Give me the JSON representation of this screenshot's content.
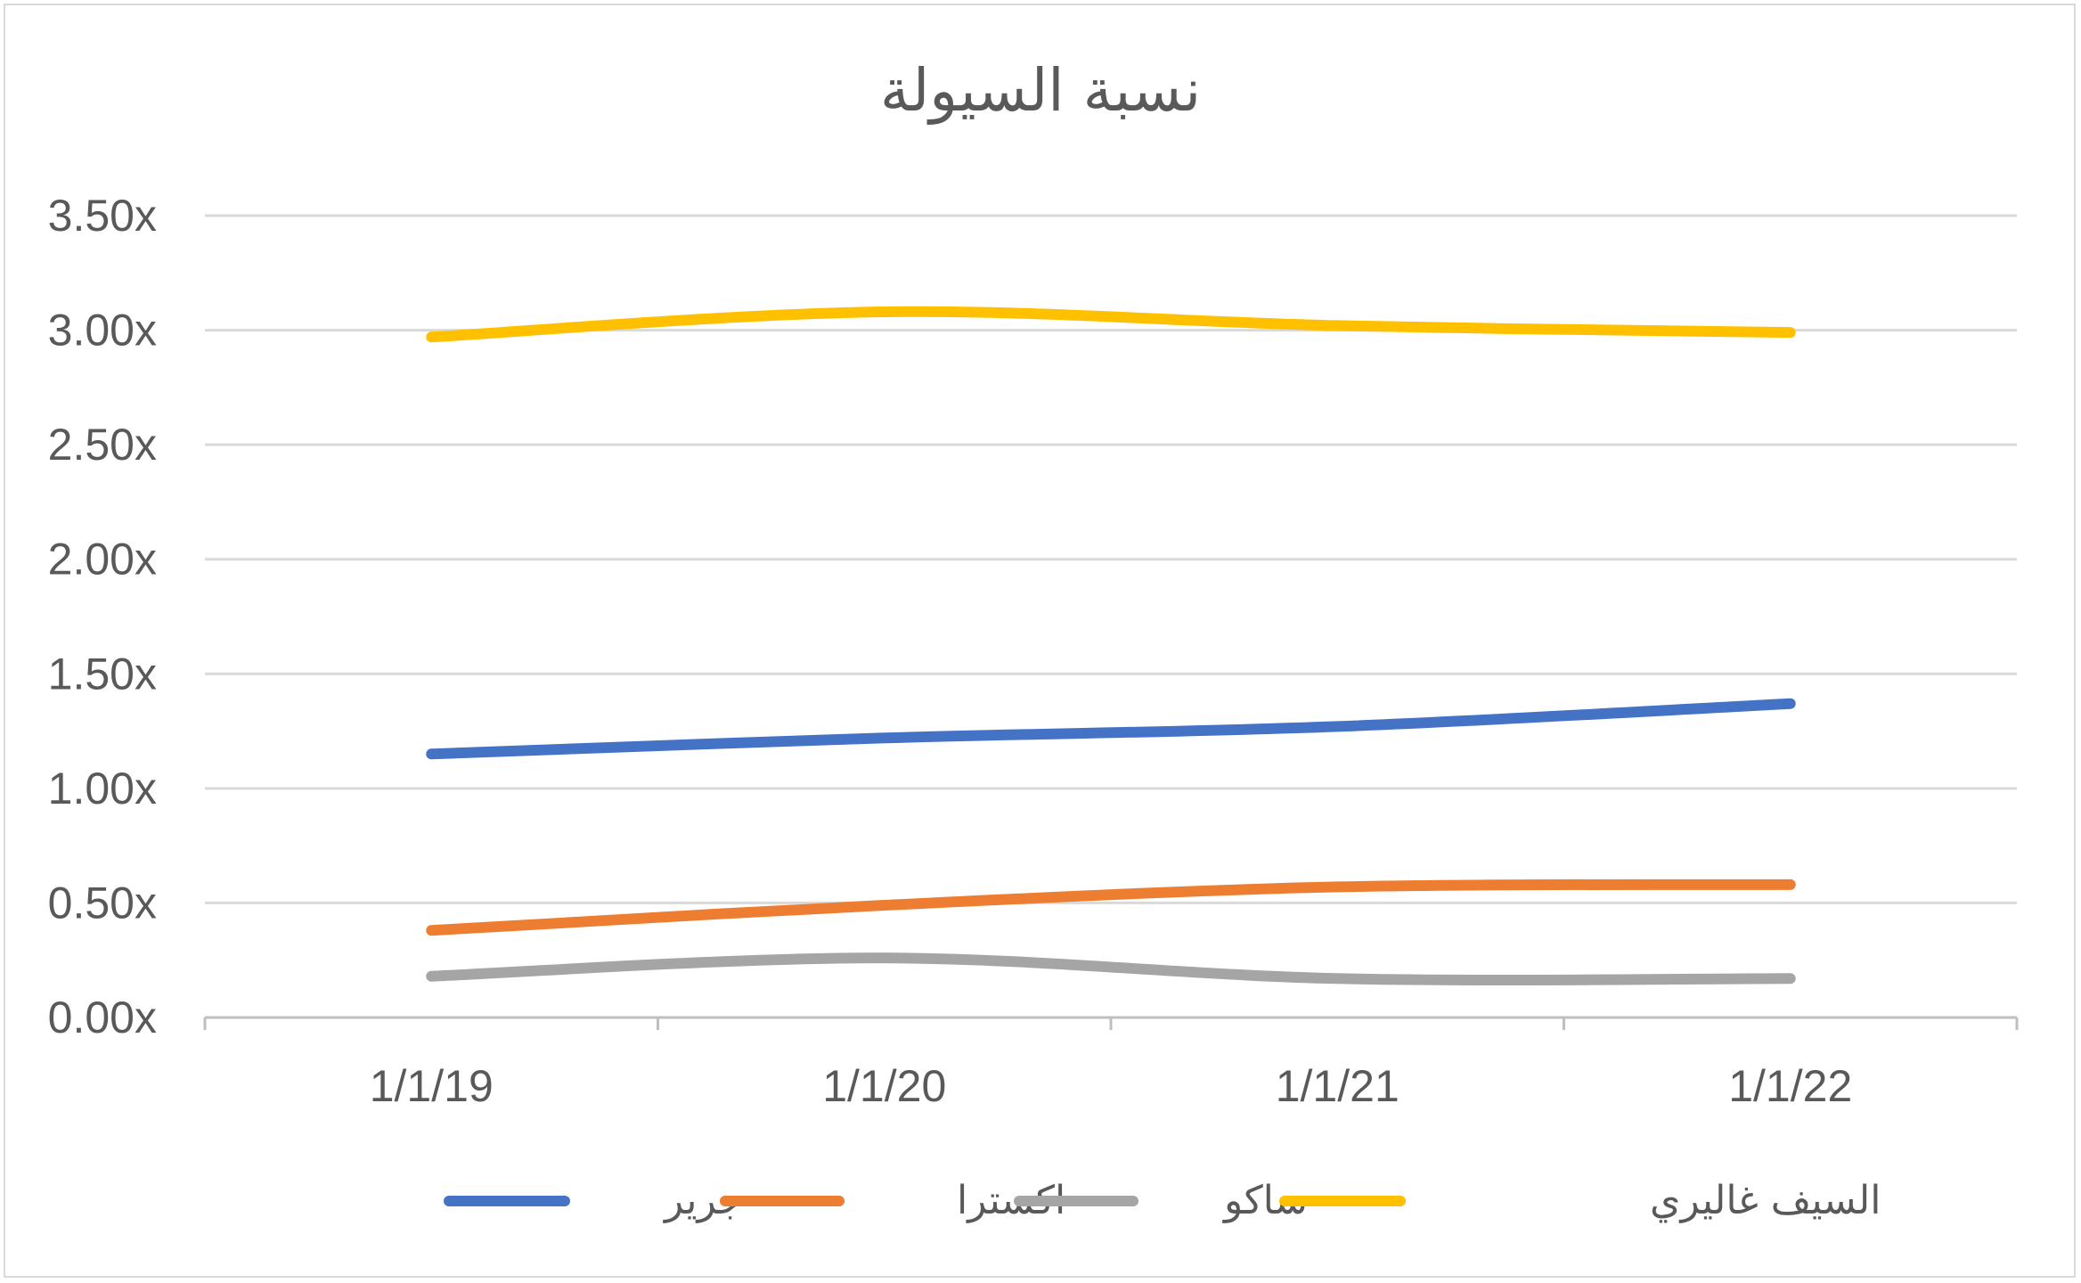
{
  "chart_data": {
    "type": "line",
    "title": "نسبة السيولة",
    "x": [
      "1/1/19",
      "1/1/20",
      "1/1/21",
      "1/1/22"
    ],
    "y_ticks": [
      "0.00x",
      "0.50x",
      "1.00x",
      "1.50x",
      "2.00x",
      "2.50x",
      "3.00x",
      "3.50x"
    ],
    "ylim": [
      0,
      3.5
    ],
    "grid": true,
    "legend_position": "bottom",
    "series": [
      {
        "name": "جرير",
        "color": "#4472C4",
        "values": [
          1.15,
          1.22,
          1.27,
          1.37
        ]
      },
      {
        "name": "اكسترا",
        "color": "#ED7D31",
        "values": [
          0.38,
          0.49,
          0.57,
          0.58
        ]
      },
      {
        "name": "ساكو",
        "color": "#A5A5A5",
        "values": [
          0.18,
          0.26,
          0.17,
          0.17
        ]
      },
      {
        "name": "السيف غاليري",
        "color": "#FFC000",
        "values": [
          2.97,
          3.08,
          3.02,
          2.99
        ]
      }
    ]
  }
}
